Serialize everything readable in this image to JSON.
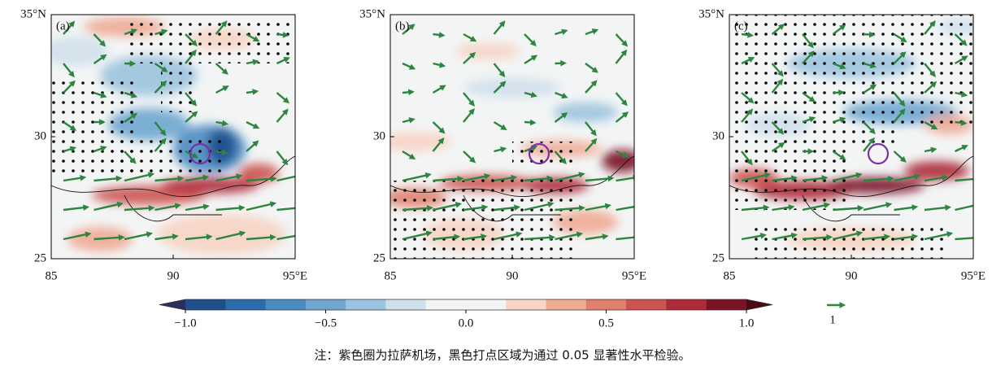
{
  "panels": [
    {
      "label": "(a)"
    },
    {
      "label": "(b)"
    },
    {
      "label": "(c)"
    }
  ],
  "xaxis": {
    "xlim": [
      85,
      95
    ],
    "xticks": [
      85,
      90,
      {
        "value": 95,
        "label": "95°E"
      }
    ]
  },
  "yaxis": {
    "ylim": [
      25,
      35
    ],
    "yticks": [
      25,
      30,
      {
        "value": 35,
        "label": "35°N"
      }
    ]
  },
  "colorbar": {
    "lim": [
      -1,
      1
    ],
    "ticks": [
      {
        "value": -1,
        "label": "−1.0"
      },
      {
        "value": -0.5,
        "label": "−0.5"
      },
      {
        "value": 0,
        "label": "0.0"
      },
      {
        "value": 0.5,
        "label": "0.5"
      },
      {
        "value": 1,
        "label": "1.0"
      }
    ],
    "colors": [
      "#1f4e8c",
      "#2b6cad",
      "#4a8bc2",
      "#6ea6cf",
      "#9cc3df",
      "#cfe0ec",
      "#f3f5f5",
      "#f3f5f5",
      "#f7d4c4",
      "#efaa93",
      "#e07f6c",
      "#cb5350",
      "#ad2a36",
      "#7a1325"
    ],
    "extend_colors": [
      "#2a2f5e",
      "#4b0a14"
    ]
  },
  "vector_key": 1,
  "note": "注：紫色圈为拉萨机场，黑色打点区域为通过 0.05 显著性水平检验。"
}
